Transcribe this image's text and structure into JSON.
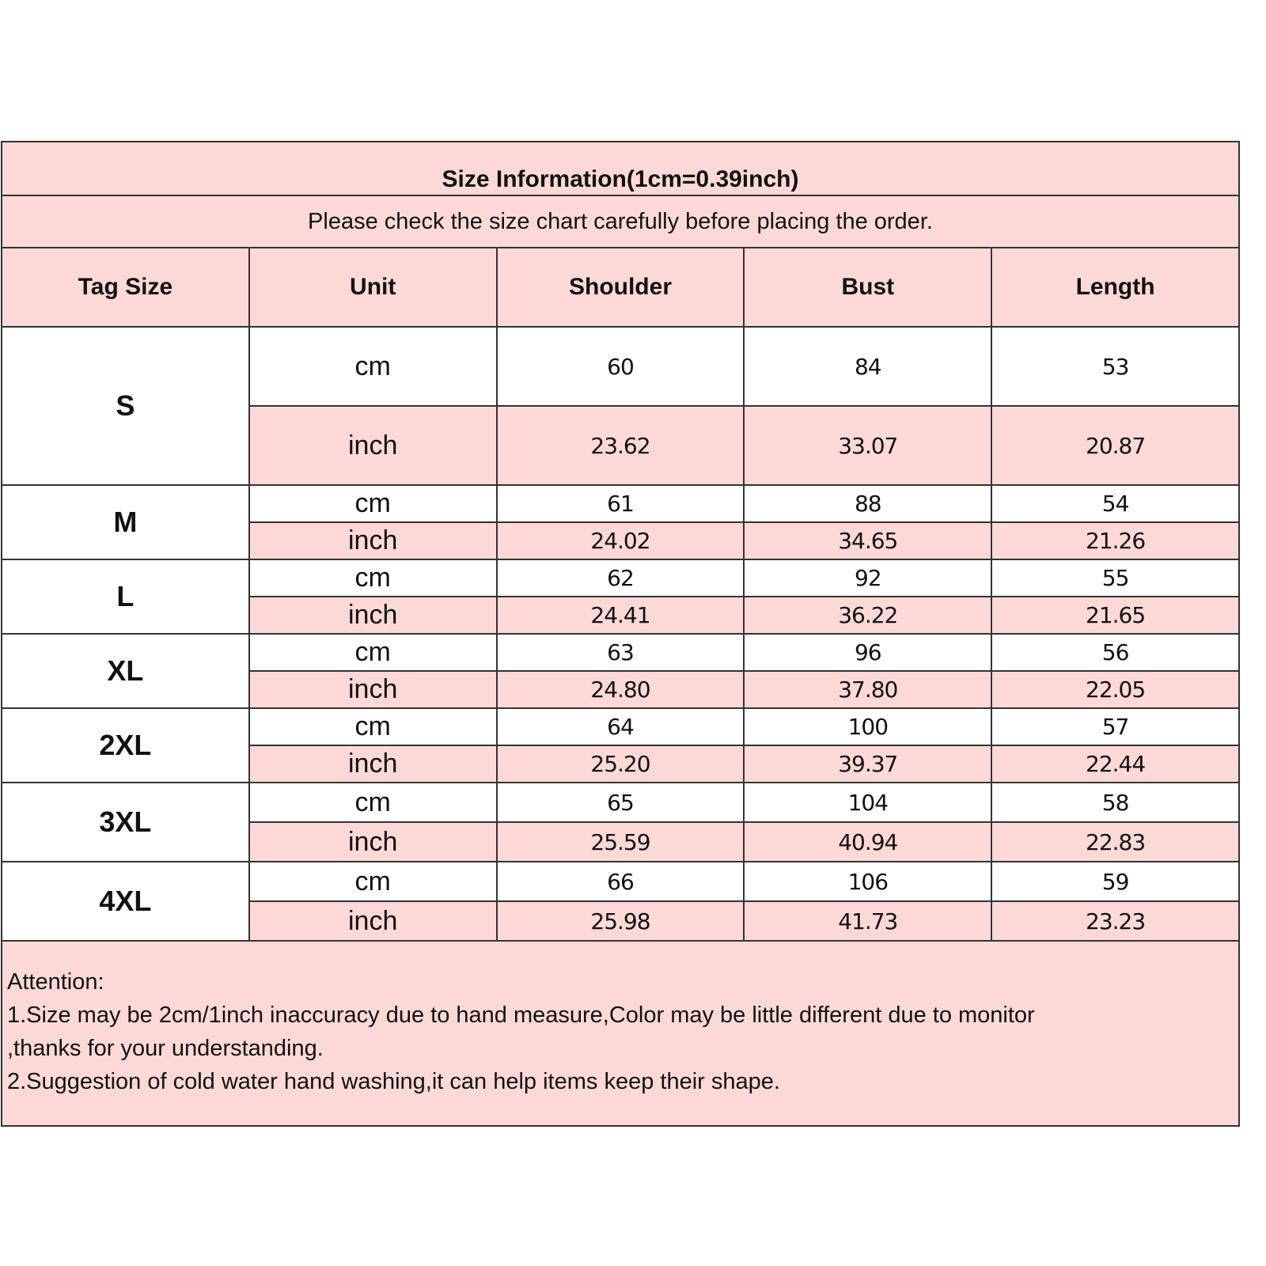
{
  "title": "Size Information(1cm=0.39inch)",
  "subtitle": "Please check the size chart carefully before placing the order.",
  "headers": [
    "Tag Size",
    "Unit",
    "Shoulder",
    "Bust",
    "Length"
  ],
  "colors": {
    "pink": "#fcd9d7",
    "border": "#333333"
  },
  "rows": [
    {
      "size": "S",
      "cm": {
        "unit": "cm",
        "shoulder": "60",
        "bust": "84",
        "length": "53"
      },
      "inch": {
        "unit": "inch",
        "shoulder": "23.62",
        "bust": "33.07",
        "length": "20.87"
      }
    },
    {
      "size": "M",
      "cm": {
        "unit": "cm",
        "shoulder": "61",
        "bust": "88",
        "length": "54"
      },
      "inch": {
        "unit": "inch",
        "shoulder": "24.02",
        "bust": "34.65",
        "length": "21.26"
      }
    },
    {
      "size": "L",
      "cm": {
        "unit": "cm",
        "shoulder": "62",
        "bust": "92",
        "length": "55"
      },
      "inch": {
        "unit": "inch",
        "shoulder": "24.41",
        "bust": "36.22",
        "length": "21.65"
      }
    },
    {
      "size": "XL",
      "cm": {
        "unit": "cm",
        "shoulder": "63",
        "bust": "96",
        "length": "56"
      },
      "inch": {
        "unit": "inch",
        "shoulder": "24.80",
        "bust": "37.80",
        "length": "22.05"
      }
    },
    {
      "size": "2XL",
      "cm": {
        "unit": "cm",
        "shoulder": "64",
        "bust": "100",
        "length": "57"
      },
      "inch": {
        "unit": "inch",
        "shoulder": "25.20",
        "bust": "39.37",
        "length": "22.44"
      }
    },
    {
      "size": "3XL",
      "cm": {
        "unit": "cm",
        "shoulder": "65",
        "bust": "104",
        "length": "58"
      },
      "inch": {
        "unit": "inch",
        "shoulder": "25.59",
        "bust": "40.94",
        "length": "22.83"
      }
    },
    {
      "size": "4XL",
      "cm": {
        "unit": "cm",
        "shoulder": "66",
        "bust": "106",
        "length": "59"
      },
      "inch": {
        "unit": "inch",
        "shoulder": "25.98",
        "bust": "41.73",
        "length": "23.23"
      }
    }
  ],
  "attention": {
    "heading": "Attention:",
    "line1": "1.Size may be 2cm/1inch inaccuracy due to hand measure,Color may be little different due to monitor",
    "line2": ",thanks for your understanding.",
    "line3": "2.Suggestion of cold water hand washing,it can help items keep their shape."
  }
}
